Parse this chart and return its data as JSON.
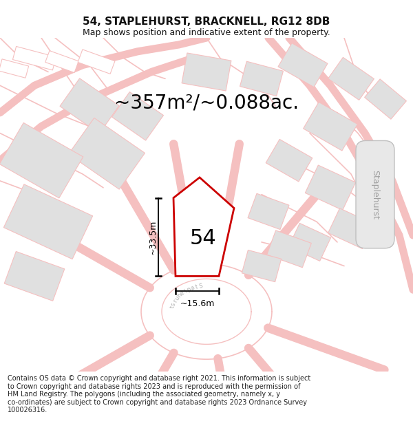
{
  "title": "54, STAPLEHURST, BRACKNELL, RG12 8DB",
  "subtitle": "Map shows position and indicative extent of the property.",
  "area_text": "~357m²/~0.088ac.",
  "dim_height": "~33.5m",
  "dim_width": "~15.6m",
  "property_label": "54",
  "copyright_text": "Contains OS data © Crown copyright and database right 2021. This information is subject\nto Crown copyright and database rights 2023 and is reproduced with the permission of\nHM Land Registry. The polygons (including the associated geometry, namely x, y\nco-ordinates) are subject to Crown copyright and database rights 2023 Ordnance Survey\n100026316.",
  "bg_color": "#ffffff",
  "road_color": "#f5c0c0",
  "building_fill": "#e0e0e0",
  "building_outline": "#f5c0c0",
  "property_color": "#cc0000",
  "title_color": "#111111",
  "title_size": 11,
  "subtitle_size": 9,
  "footer_size": 7,
  "area_text_size": 20
}
